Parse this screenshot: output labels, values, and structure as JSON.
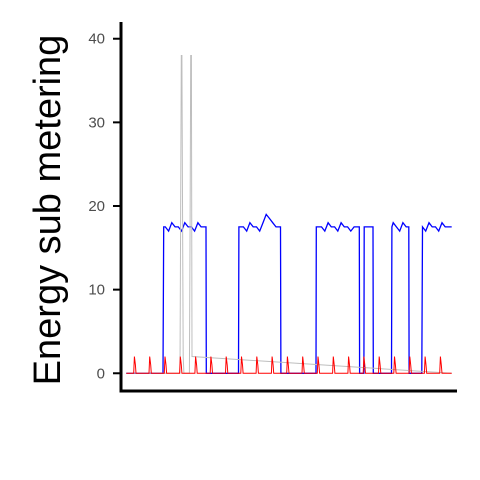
{
  "chart_data": {
    "type": "line",
    "title": "",
    "xlabel": "",
    "ylabel": "Energy sub metering",
    "ylim": [
      -2,
      42
    ],
    "xlim": [
      -1,
      101
    ],
    "y_ticks": [
      0,
      10,
      20,
      30,
      40
    ],
    "grid": false,
    "legend": "none",
    "series": [
      {
        "color": "#0000ff",
        "x": [
          0,
          11.3,
          11.5,
          12,
          13,
          14,
          15,
          16,
          17,
          18,
          19,
          20,
          21,
          22,
          23,
          24,
          24.5,
          24.6,
          34.5,
          34.6,
          36,
          37,
          38,
          39,
          40,
          41,
          42,
          43,
          44,
          45,
          46,
          47,
          47.4,
          47.5,
          58.3,
          58.4,
          60,
          61,
          62,
          63,
          64,
          65,
          66,
          67,
          68,
          69,
          70,
          71.6,
          71.7,
          73,
          73.1,
          75.8,
          75.9,
          81.5,
          81.6,
          82,
          83,
          84,
          85,
          86,
          86.8,
          86.9,
          90.8,
          91,
          92,
          93,
          94,
          95,
          96,
          97,
          98,
          100
        ],
        "values": [
          0,
          0,
          17.5,
          17.5,
          17,
          18,
          17.5,
          17.5,
          17,
          18,
          17.5,
          17.5,
          17,
          18,
          17.5,
          17.5,
          17.5,
          0,
          0,
          17.5,
          17.5,
          17,
          18,
          17.5,
          17.5,
          17,
          18,
          19,
          18.5,
          18,
          17.5,
          17.5,
          17.5,
          0,
          0,
          17.5,
          17.5,
          17,
          18,
          17.5,
          17.5,
          17,
          18,
          17.5,
          17.5,
          17,
          17.5,
          17.5,
          0,
          0,
          17.5,
          17.5,
          0,
          0,
          17.5,
          18,
          17.5,
          17,
          18,
          17.5,
          17.5,
          0,
          0,
          17.5,
          17,
          18,
          17.5,
          17.5,
          17,
          18,
          17.5,
          17.5
        ]
      },
      {
        "color": "#bebebe",
        "x": [
          0,
          16.5,
          16.7,
          16.9,
          17.1,
          17.3,
          17.5,
          17.7,
          19.4,
          19.6,
          19.8,
          20,
          20.2,
          100
        ],
        "values": [
          0,
          0,
          18,
          38,
          38,
          18,
          2,
          0,
          0,
          18,
          38,
          38,
          2,
          0
        ]
      },
      {
        "color": "#ff0000",
        "x": [
          0,
          2.3,
          2.5,
          2.8,
          3,
          7,
          7.2,
          7.5,
          7.7,
          11.7,
          11.9,
          12.2,
          12.4,
          16.4,
          16.6,
          16.9,
          17.1,
          21.1,
          21.3,
          21.6,
          21.8,
          25.8,
          26,
          26.3,
          26.5,
          30.5,
          30.7,
          31,
          31.2,
          35.2,
          35.4,
          35.7,
          35.9,
          39.9,
          40.1,
          40.4,
          40.6,
          44.6,
          44.8,
          45.1,
          45.3,
          49.3,
          49.5,
          49.8,
          50,
          54,
          54.2,
          54.5,
          54.7,
          58.7,
          58.9,
          59.2,
          59.4,
          63.4,
          63.6,
          63.9,
          64.1,
          68.1,
          68.3,
          68.6,
          68.8,
          72.8,
          73,
          73.3,
          73.5,
          77.5,
          77.7,
          78,
          78.2,
          82.2,
          82.4,
          82.7,
          82.9,
          86.9,
          87.1,
          87.4,
          87.6,
          91.6,
          91.8,
          92.1,
          92.3,
          96.3,
          96.5,
          96.8,
          97,
          100
        ],
        "values": [
          0,
          0,
          2,
          1,
          0,
          0,
          2,
          1,
          0,
          0,
          2,
          1,
          0,
          0,
          2,
          1,
          0,
          0,
          2,
          1,
          0,
          0,
          2,
          1,
          0,
          0,
          2,
          1,
          0,
          0,
          2,
          1,
          0,
          0,
          2,
          1,
          0,
          0,
          2,
          1,
          0,
          0,
          2,
          1,
          0,
          0,
          2,
          1,
          0,
          0,
          2,
          1,
          0,
          0,
          2,
          1,
          0,
          0,
          2,
          1,
          0,
          0,
          2,
          1,
          0,
          0,
          2,
          1,
          0,
          0,
          2,
          1,
          0,
          0,
          2,
          1,
          0,
          0,
          2,
          1,
          0,
          0,
          2,
          1,
          0,
          0
        ]
      }
    ]
  }
}
